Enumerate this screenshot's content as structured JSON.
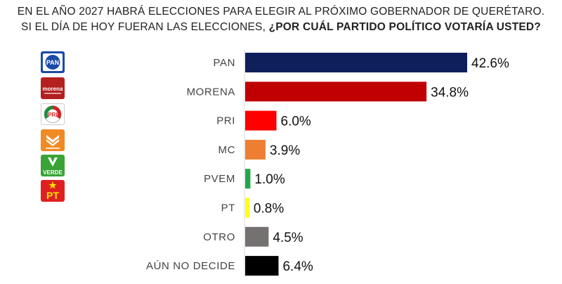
{
  "title": {
    "line1": "EN EL AÑO 2027 HABRÁ ELECCIONES PARA ELEGIR AL PRÓXIMO GOBERNADOR DE QUERÉTARO.",
    "line2_plain": "SI EL DÍA DE HOY FUERAN LAS ELECCIONES, ",
    "line2_bold": "¿POR CUÁL PARTIDO POLÍTICO VOTARÍA USTED?"
  },
  "logos": [
    {
      "name": "pan-logo",
      "text": "PAN",
      "color": "#1a4aa8"
    },
    {
      "name": "morena-logo",
      "text": "morena",
      "color": "#b3201f"
    },
    {
      "name": "pri-logo",
      "text": "PRI",
      "color": "#ffffff"
    },
    {
      "name": "mc-logo",
      "text": "MOVIMIENTO CIUDADANO",
      "color": "#f08a24"
    },
    {
      "name": "verde-logo",
      "text": "VERDE",
      "color": "#3aa335"
    },
    {
      "name": "pt-logo",
      "text": "PT",
      "color": "#e02020"
    }
  ],
  "chart_data": {
    "type": "bar",
    "orientation": "horizontal",
    "categories": [
      "PAN",
      "MORENA",
      "PRI",
      "MC",
      "PVEM",
      "PT",
      "OTRO",
      "AÚN NO DECIDE"
    ],
    "values": [
      42.6,
      34.8,
      6.0,
      3.9,
      1.0,
      0.8,
      4.5,
      6.4
    ],
    "value_labels": [
      "42.6%",
      "34.8%",
      "6.0%",
      "3.9%",
      "1.0%",
      "0.8%",
      "4.5%",
      "6.4%"
    ],
    "colors": [
      "#0f1f5c",
      "#c00000",
      "#ff0000",
      "#ee7f32",
      "#1fa84a",
      "#ffff1a",
      "#767171",
      "#000000"
    ],
    "xlim": [
      0,
      42.6
    ],
    "grid": false,
    "legend": "none"
  }
}
